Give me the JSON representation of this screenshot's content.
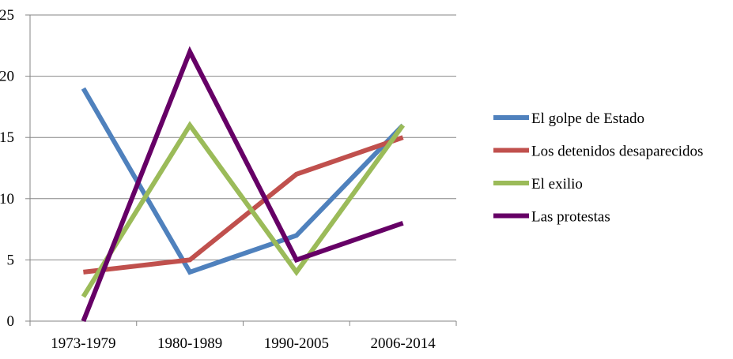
{
  "chart_data": {
    "type": "line",
    "title": "",
    "xlabel": "",
    "ylabel": "",
    "categories": [
      "1973-1979",
      "1980-1989",
      "1990-2005",
      "2006-2014"
    ],
    "ylim": [
      0,
      25
    ],
    "yticks": [
      0,
      5,
      10,
      15,
      20,
      25
    ],
    "grid": true,
    "legend_position": "right",
    "series": [
      {
        "name": "El golpe de Estado",
        "color": "#4f81bd",
        "values": [
          19,
          4,
          7,
          16
        ]
      },
      {
        "name": "Los detenidos desaparecidos",
        "color": "#c0504d",
        "values": [
          4,
          5,
          12,
          15
        ]
      },
      {
        "name": "El exilio",
        "color": "#9bbb59",
        "values": [
          2,
          16,
          4,
          16
        ]
      },
      {
        "name": "Las protestas",
        "color": "#660066",
        "values": [
          0,
          22,
          5,
          8
        ]
      }
    ]
  }
}
